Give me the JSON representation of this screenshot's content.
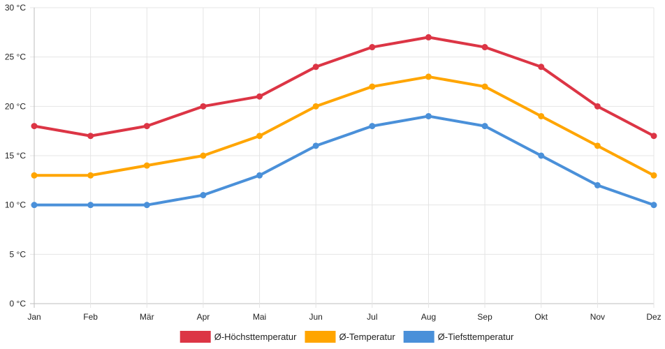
{
  "chart_data": {
    "type": "line",
    "categories": [
      "Jan",
      "Feb",
      "Mär",
      "Apr",
      "Mai",
      "Jun",
      "Jul",
      "Aug",
      "Sep",
      "Okt",
      "Nov",
      "Dez"
    ],
    "series": [
      {
        "name": "Ø-Höchsttemperatur",
        "color": "#dc3545",
        "values": [
          18,
          17,
          18,
          20,
          21,
          24,
          26,
          27,
          26,
          24,
          20,
          17
        ]
      },
      {
        "name": "Ø-Temperatur",
        "color": "#ffa500",
        "values": [
          13,
          13,
          14,
          15,
          17,
          20,
          22,
          23,
          22,
          19,
          16,
          13
        ]
      },
      {
        "name": "Ø-Tiefsttemperatur",
        "color": "#4a90d9",
        "values": [
          10,
          10,
          10,
          11,
          13,
          16,
          18,
          19,
          18,
          15,
          12,
          10
        ]
      }
    ],
    "ylim": [
      0,
      30
    ],
    "yticks": [
      {
        "value": 0,
        "label": "0 °C"
      },
      {
        "value": 5,
        "label": "5 °C"
      },
      {
        "value": 10,
        "label": "10 °C"
      },
      {
        "value": 15,
        "label": "15 °C"
      },
      {
        "value": 20,
        "label": "20 °C"
      },
      {
        "value": 25,
        "label": "25 °C"
      },
      {
        "value": 30,
        "label": "30 °C"
      }
    ],
    "grid": true,
    "legend_position": "bottom-center"
  }
}
